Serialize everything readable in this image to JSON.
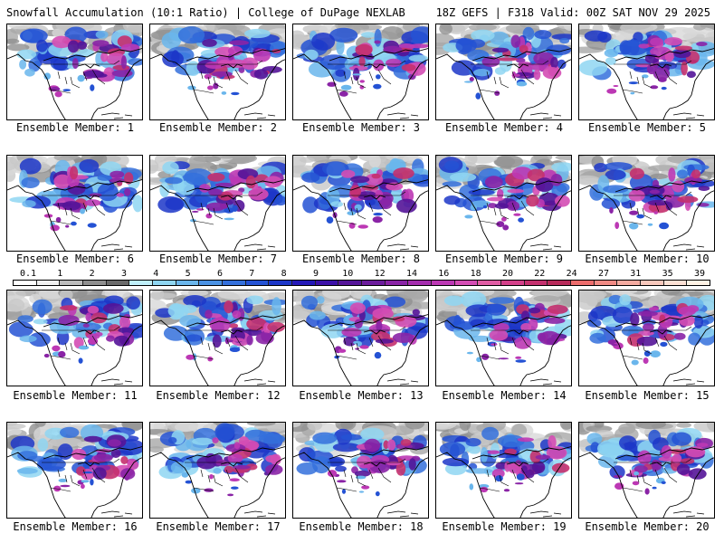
{
  "header": {
    "title_left": "Snowfall Accumulation (10:1 Ratio) | College of DuPage NEXLAB",
    "title_right": "18Z GEFS | F318 Valid: 00Z SAT NOV 29 2025"
  },
  "colorbar": {
    "labels": [
      "0.1",
      "1",
      "2",
      "3",
      "4",
      "5",
      "6",
      "7",
      "8",
      "9",
      "10",
      "12",
      "14",
      "16",
      "18",
      "20",
      "22",
      "24",
      "27",
      "31",
      "35",
      "39"
    ],
    "colors": [
      "#ffffff",
      "#f0f0f0",
      "#bcbcbc",
      "#8f8f8f",
      "#6b6b6b",
      "#bfeffa",
      "#8fd6f2",
      "#6ab6ec",
      "#4a92e4",
      "#3470dc",
      "#2452d4",
      "#1c36c8",
      "#2418b8",
      "#3c10a8",
      "#541498",
      "#6c1c9c",
      "#8a24a6",
      "#a42cae",
      "#bc38b4",
      "#d44cb4",
      "#e05ca4",
      "#d4408a",
      "#c4306e",
      "#b82a5a",
      "#ec6c6c",
      "#f08a84",
      "#f4aaa0",
      "#f8c8bc",
      "#fce0d4",
      "#fff2e4"
    ]
  },
  "panels": [
    {
      "label": "Ensemble Member: 1"
    },
    {
      "label": "Ensemble Member: 2"
    },
    {
      "label": "Ensemble Member: 3"
    },
    {
      "label": "Ensemble Member: 4"
    },
    {
      "label": "Ensemble Member: 5"
    },
    {
      "label": "Ensemble Member: 6"
    },
    {
      "label": "Ensemble Member: 7"
    },
    {
      "label": "Ensemble Member: 8"
    },
    {
      "label": "Ensemble Member: 9"
    },
    {
      "label": "Ensemble Member: 10"
    },
    {
      "label": "Ensemble Member: 11"
    },
    {
      "label": "Ensemble Member: 12"
    },
    {
      "label": "Ensemble Member: 13"
    },
    {
      "label": "Ensemble Member: 14"
    },
    {
      "label": "Ensemble Member: 15"
    },
    {
      "label": "Ensemble Member: 16"
    },
    {
      "label": "Ensemble Member: 17"
    },
    {
      "label": "Ensemble Member: 18"
    },
    {
      "label": "Ensemble Member: 19"
    },
    {
      "label": "Ensemble Member: 20"
    }
  ]
}
